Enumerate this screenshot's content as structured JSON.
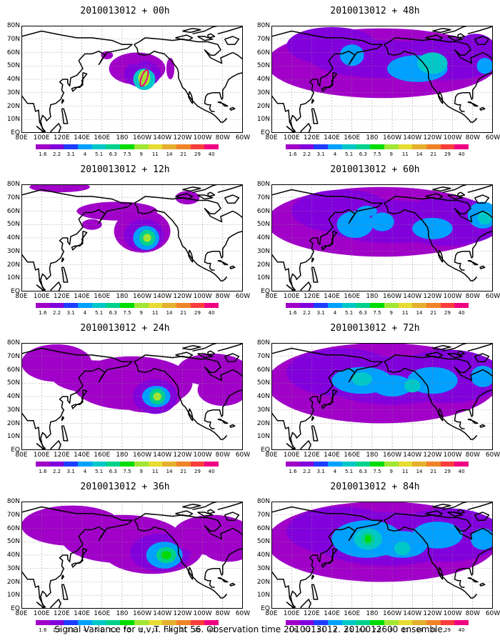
{
  "panels": [
    {
      "title": "2010013012 + 00h",
      "stage": 0
    },
    {
      "title": "2010013012 + 48h",
      "stage": 4
    },
    {
      "title": "2010013012 + 12h",
      "stage": 1
    },
    {
      "title": "2010013012 + 60h",
      "stage": 5
    },
    {
      "title": "2010013012 + 24h",
      "stage": 2
    },
    {
      "title": "2010013012 + 72h",
      "stage": 6
    },
    {
      "title": "2010013012 + 36h",
      "stage": 3
    },
    {
      "title": "2010013012 + 84h",
      "stage": 7
    }
  ],
  "lat_labels": [
    "80N",
    "70N",
    "60N",
    "50N",
    "40N",
    "30N",
    "20N",
    "10N",
    "EQ"
  ],
  "lon_labels": [
    "80E",
    "100E",
    "120E",
    "140E",
    "160E",
    "180",
    "160W",
    "140W",
    "120W",
    "100W",
    "80W",
    "60W"
  ],
  "colorbar": {
    "labels": [
      "1.6",
      "2.2",
      "3.1",
      "4",
      "5.1",
      "6.3",
      "7.5",
      "9",
      "11",
      "14",
      "21",
      "29",
      "40"
    ],
    "colors": [
      "#a000c8",
      "#8200dc",
      "#1e3cff",
      "#00a0ff",
      "#00c8c8",
      "#00d28c",
      "#00dc00",
      "#a0e632",
      "#e6dc32",
      "#e6af2d",
      "#f08228",
      "#fa3c3c",
      "#f00082"
    ]
  },
  "caption": "Signal Variance for u,v,T. Flight 56. Observation time 2010013012. 2010012600 ensemble."
}
